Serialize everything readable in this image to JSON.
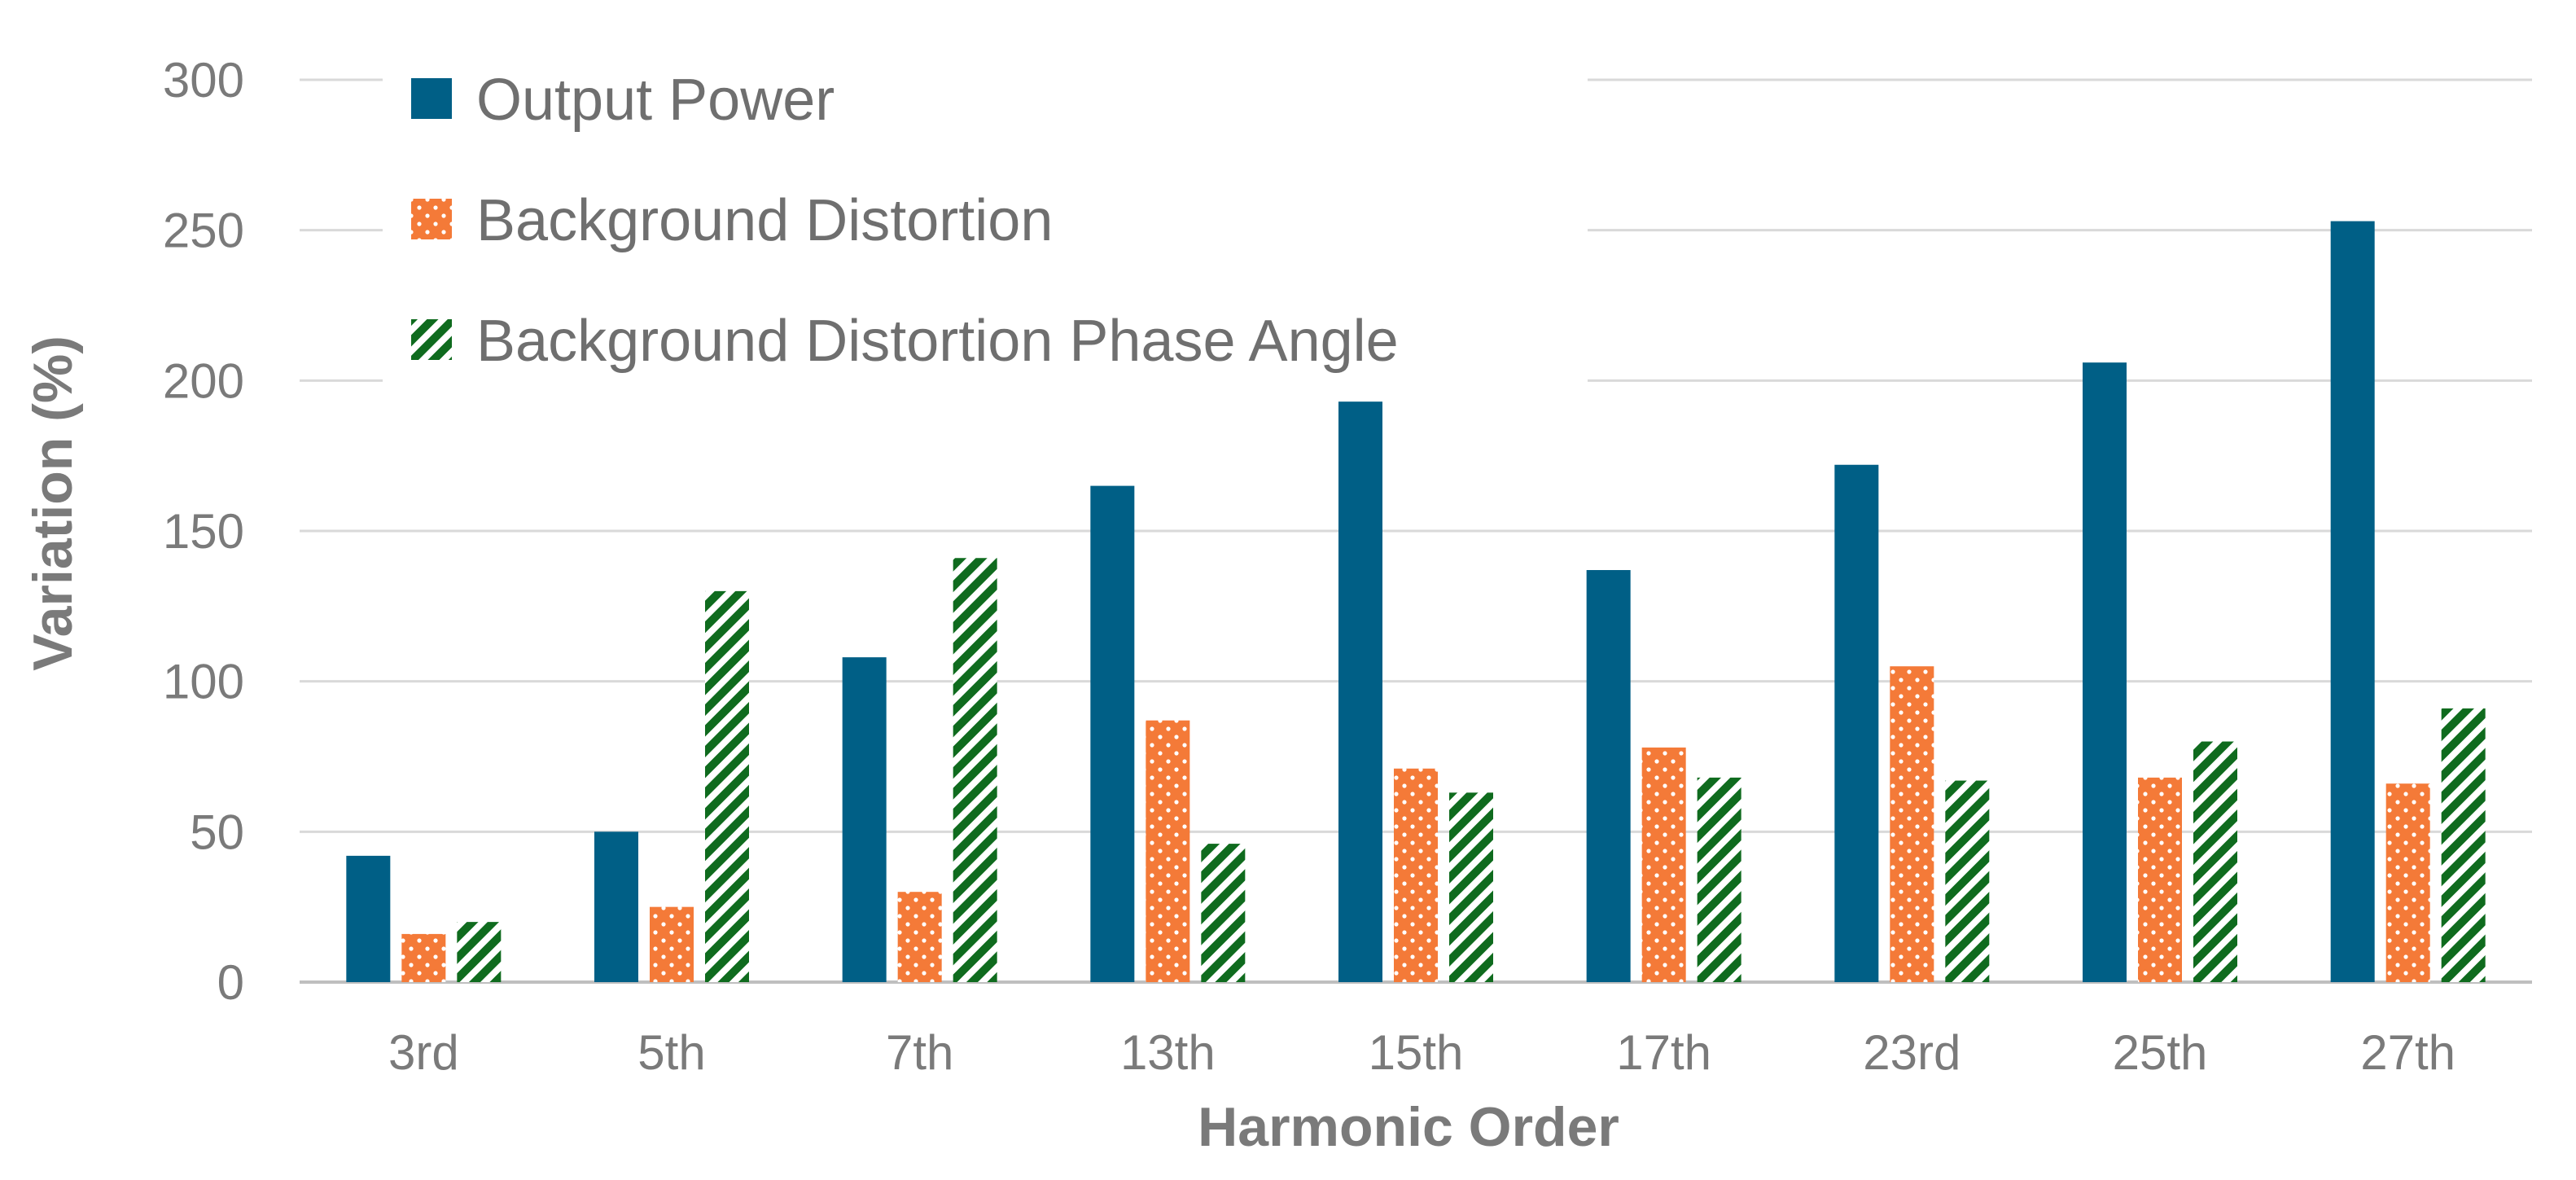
{
  "chart_data": {
    "type": "bar",
    "title": "",
    "xlabel": "Harmonic Order",
    "ylabel": "Variation (%)",
    "ylim": [
      0,
      300
    ],
    "yticks": [
      0,
      50,
      100,
      150,
      200,
      250,
      300
    ],
    "grid": true,
    "legend_position": "top-left",
    "categories": [
      "3rd",
      "5th",
      "7th",
      "13th",
      "15th",
      "17th",
      "23rd",
      "25th",
      "27th"
    ],
    "series": [
      {
        "name": "Output Power",
        "color": "#005f86",
        "pattern": "solid",
        "values": [
          42,
          50,
          108,
          165,
          193,
          137,
          172,
          206,
          253
        ]
      },
      {
        "name": "Background Distortion",
        "color": "#f47a38",
        "pattern": "dots",
        "values": [
          16,
          25,
          30,
          87,
          71,
          78,
          105,
          68,
          66
        ]
      },
      {
        "name": "Background Distortion Phase Angle",
        "color": "#0f6b1e",
        "pattern": "diagonal-stripes",
        "values": [
          20,
          130,
          141,
          46,
          63,
          68,
          67,
          80,
          91
        ]
      }
    ]
  }
}
